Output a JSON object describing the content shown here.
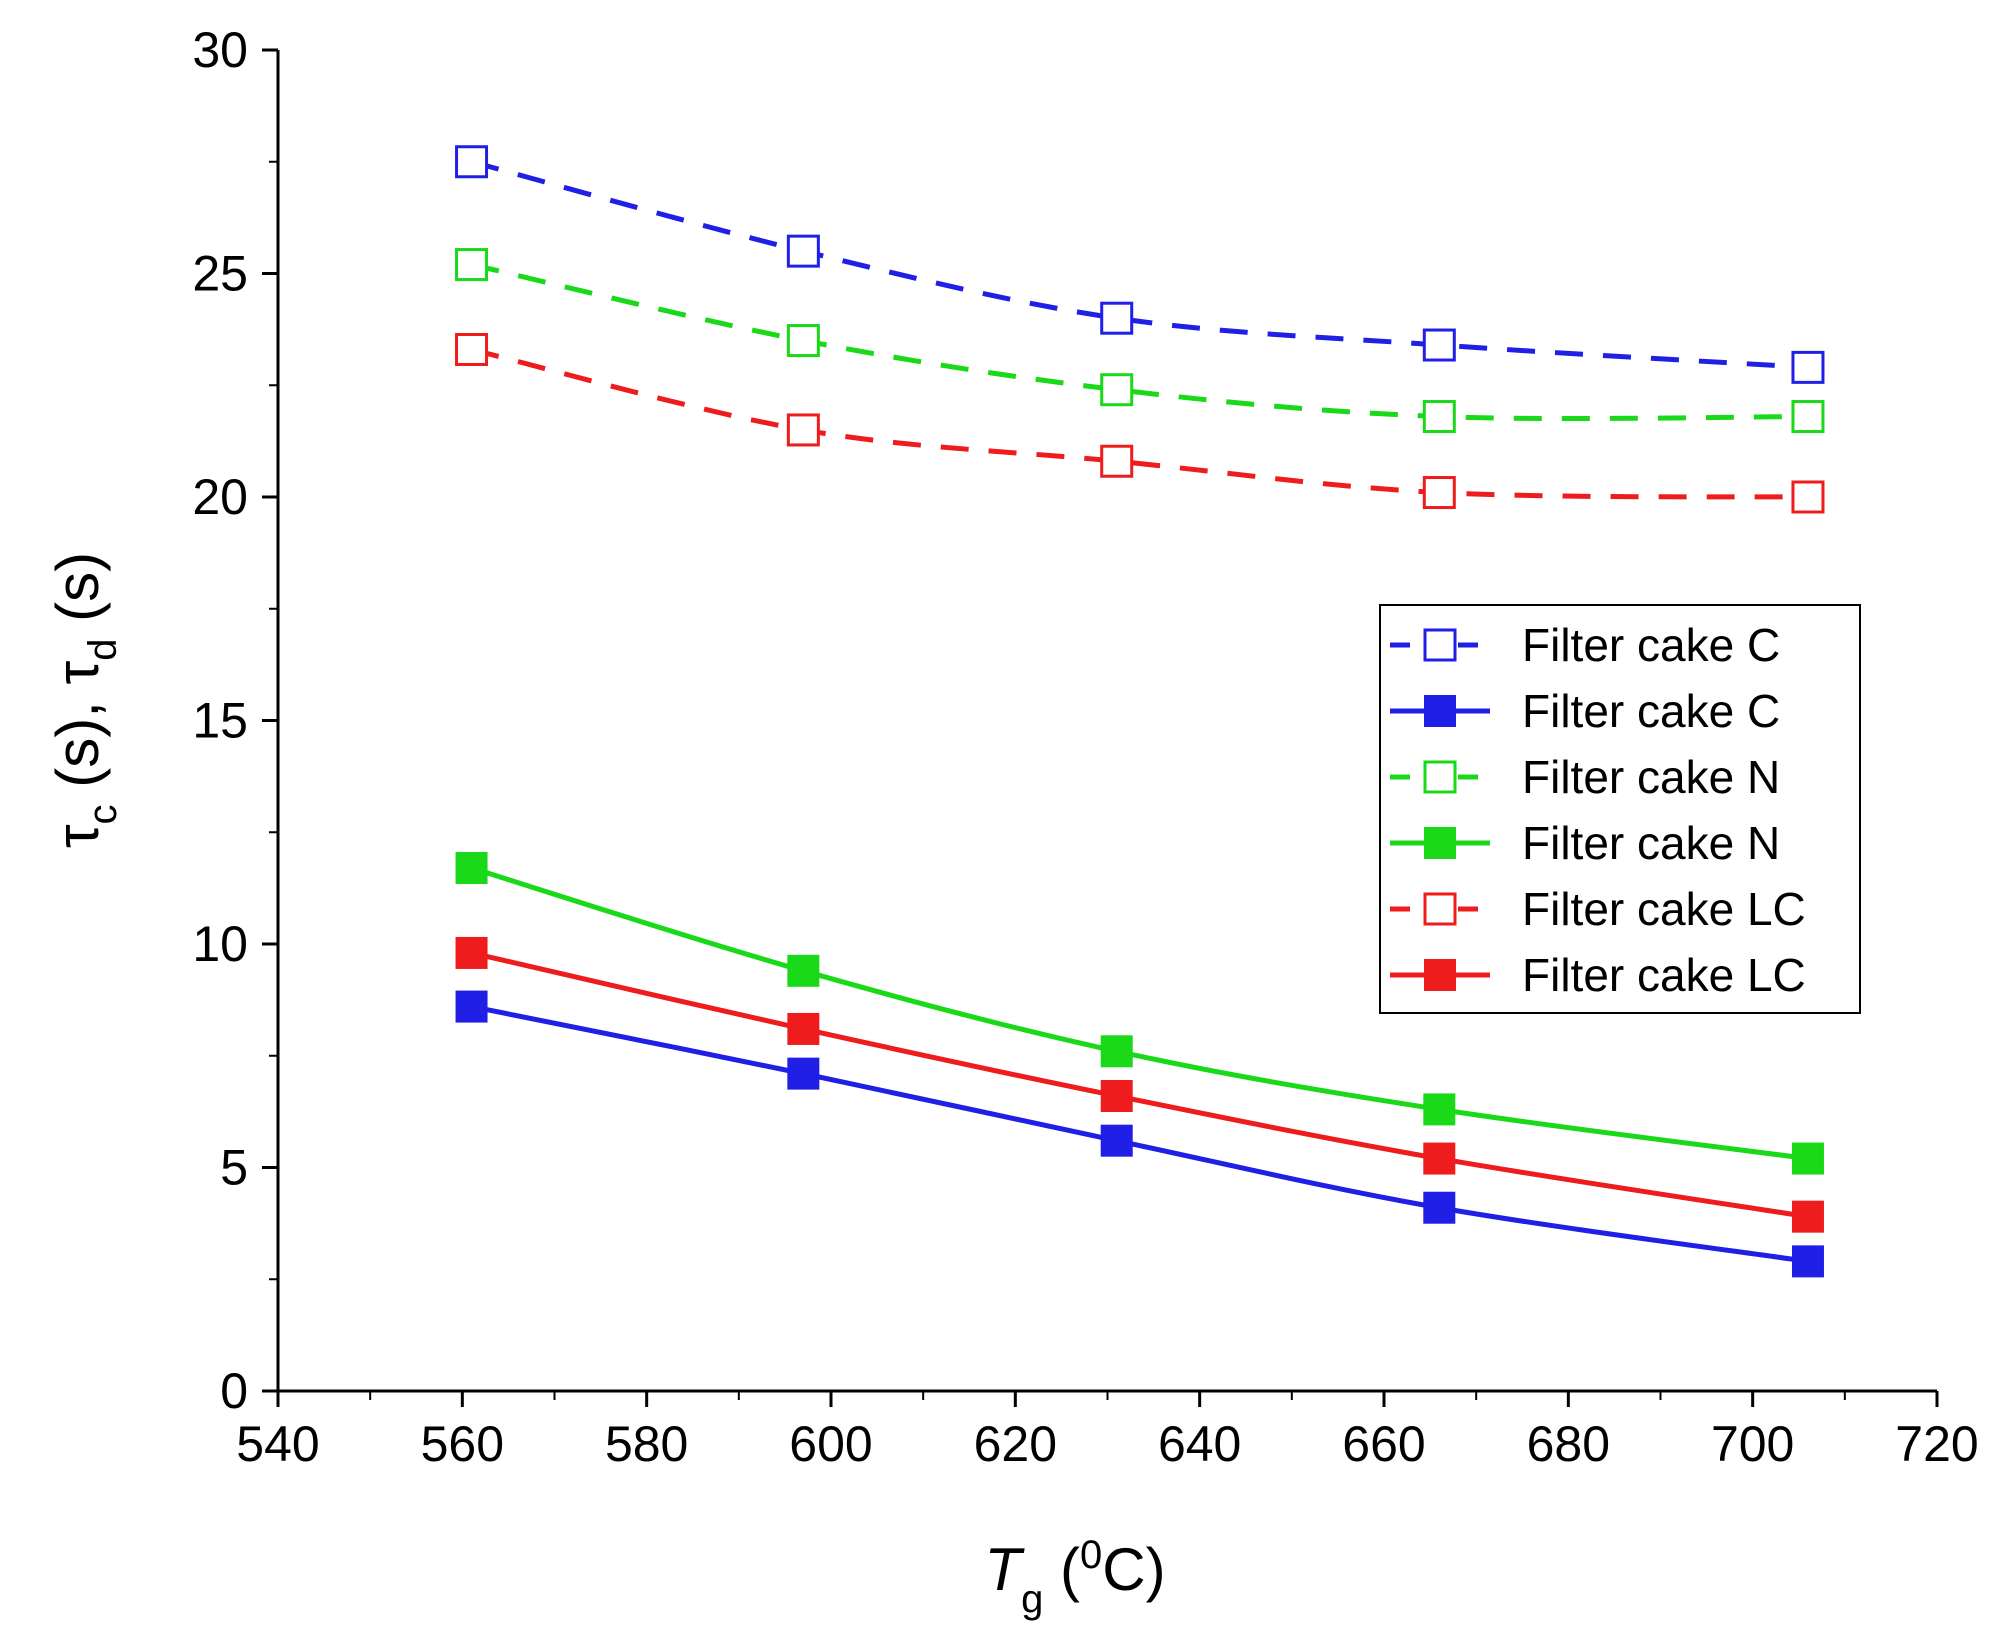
{
  "chart_data": {
    "type": "line",
    "title": "",
    "xlabel": {
      "main": "T",
      "sub": "g",
      "open": " (",
      "sup": "0",
      "unit": "C)"
    },
    "ylabel": {
      "tau1": "τ",
      "sub1": "c",
      "mid": " (s), ",
      "tau2": "τ",
      "sub2": "d",
      "tail": " (s)"
    },
    "xlim": [
      540,
      720
    ],
    "ylim": [
      0,
      30
    ],
    "xticks": [
      540,
      560,
      580,
      600,
      620,
      640,
      660,
      680,
      700,
      720
    ],
    "yticks": [
      0,
      5,
      10,
      15,
      20,
      25,
      30
    ],
    "legend_position": "center-right",
    "series": [
      {
        "name": "Filter cake C",
        "color": "#1f1fe6",
        "style": "dashed",
        "marker": "open-square",
        "x": [
          561,
          597,
          631,
          666,
          706
        ],
        "y": [
          27.5,
          25.5,
          24.0,
          23.4,
          22.9
        ]
      },
      {
        "name": "Filter cake C",
        "color": "#1f1fe6",
        "style": "solid",
        "marker": "filled-square",
        "x": [
          561,
          597,
          631,
          666,
          706
        ],
        "y": [
          8.6,
          7.1,
          5.6,
          4.1,
          2.9
        ]
      },
      {
        "name": "Filter cake N",
        "color": "#19d919",
        "style": "dashed",
        "marker": "open-square",
        "x": [
          561,
          597,
          631,
          666,
          706
        ],
        "y": [
          25.2,
          23.5,
          22.4,
          21.8,
          21.8
        ]
      },
      {
        "name": "Filter cake N",
        "color": "#19d919",
        "style": "solid",
        "marker": "filled-square",
        "x": [
          561,
          597,
          631,
          666,
          706
        ],
        "y": [
          11.7,
          9.4,
          7.6,
          6.3,
          5.2
        ]
      },
      {
        "name": "Filter cake LC",
        "color": "#ee1c1c",
        "style": "dashed",
        "marker": "open-square",
        "x": [
          561,
          597,
          631,
          666,
          706
        ],
        "y": [
          23.3,
          21.5,
          20.8,
          20.1,
          20.0
        ]
      },
      {
        "name": "Filter cake LC",
        "color": "#ee1c1c",
        "style": "solid",
        "marker": "filled-square",
        "x": [
          561,
          597,
          631,
          666,
          706
        ],
        "y": [
          9.8,
          8.1,
          6.6,
          5.2,
          3.9
        ]
      }
    ]
  }
}
